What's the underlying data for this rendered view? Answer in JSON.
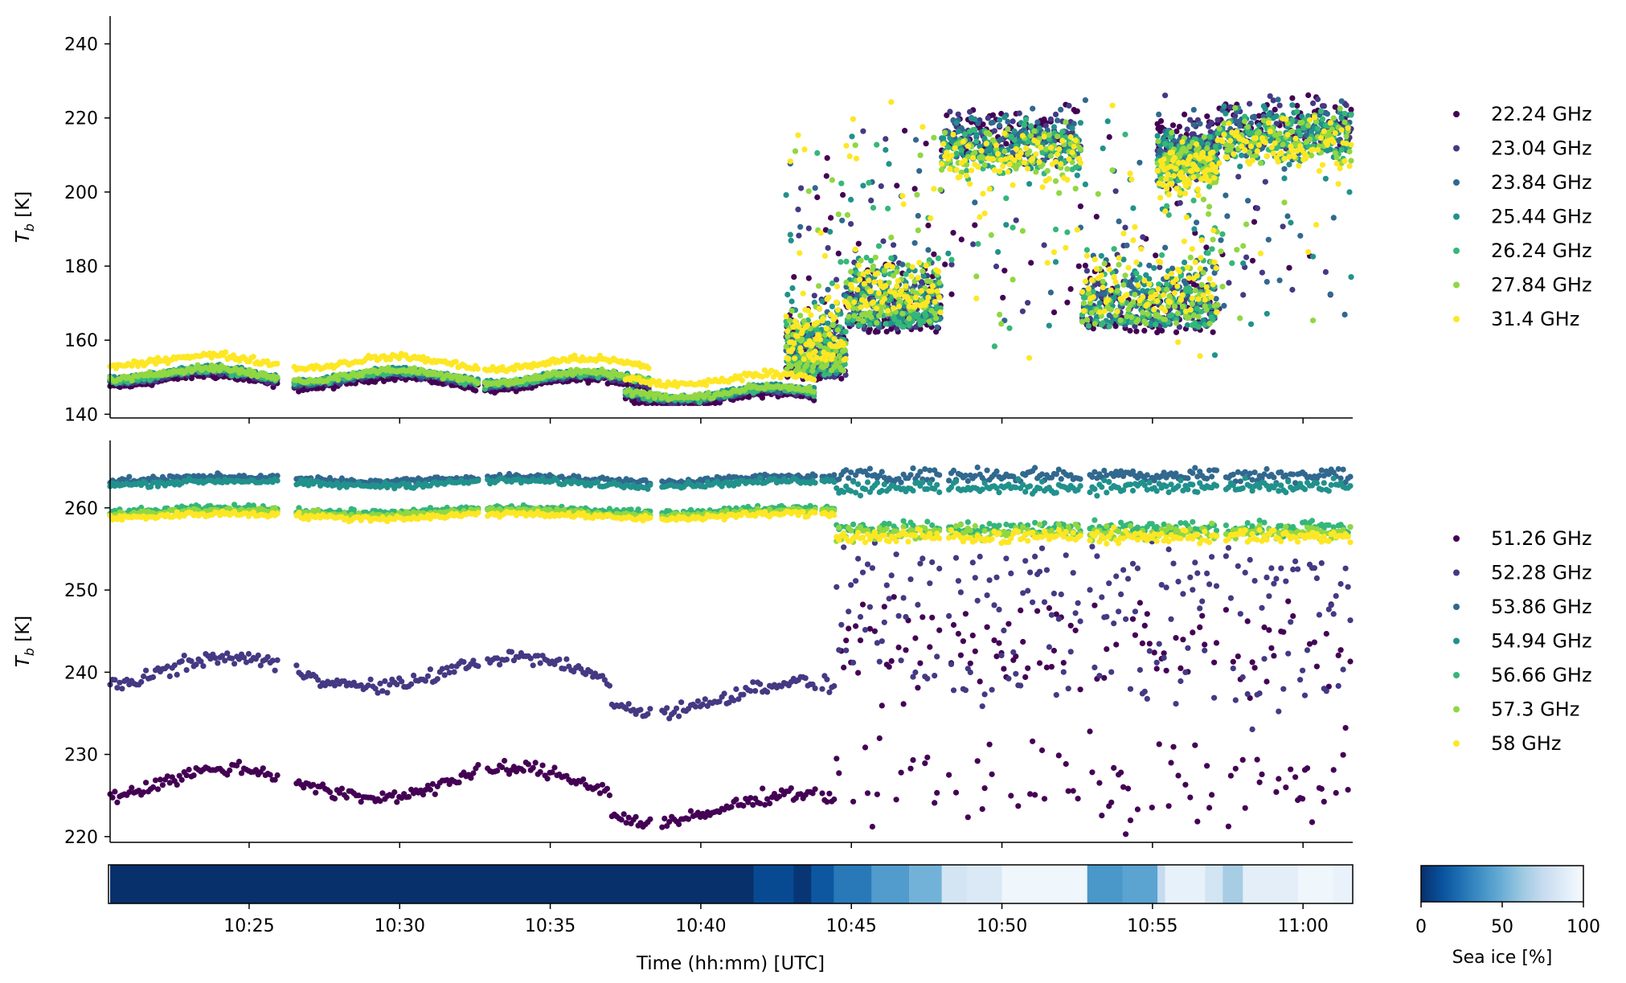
{
  "figure": {
    "ylabel_top": "T_b [K]",
    "ylabel_bottom": "T_b [K]",
    "xlabel": "Time (hh:mm) [UTC]",
    "colorbar_label": "Sea ice [%]",
    "colorbar_ticks": [
      "0",
      "50",
      "100"
    ]
  },
  "chart_data": [
    {
      "type": "scatter",
      "panel": "top",
      "ylabel": "T_b [K]",
      "x_range": [
        "10:20:23",
        "11:01:39"
      ],
      "ylim": [
        139,
        247.5
      ],
      "yticks": [
        140,
        160,
        180,
        200,
        220,
        240
      ],
      "legend_position": "right",
      "series": [
        {
          "name": "22.24 GHz",
          "color": "#440154",
          "offset": -3.0,
          "hi_offset": 4
        },
        {
          "name": "23.04 GHz",
          "color": "#443983",
          "offset": -2.0,
          "hi_offset": 3
        },
        {
          "name": "23.84 GHz",
          "color": "#31688e",
          "offset": -1.5,
          "hi_offset": 2
        },
        {
          "name": "25.44 GHz",
          "color": "#21918c",
          "offset": -1.0,
          "hi_offset": 1
        },
        {
          "name": "26.24 GHz",
          "color": "#35b779",
          "offset": -1.5,
          "hi_offset": 0
        },
        {
          "name": "27.84 GHz",
          "color": "#90d743",
          "offset": -1.0,
          "hi_offset": -1
        },
        {
          "name": "31.4 GHz",
          "color": "#fde725",
          "offset": 2.5,
          "hi_offset": -2
        }
      ],
      "segments": [
        {
          "start": "10:20:23",
          "end": "10:26:00",
          "base": 152,
          "kind": "calm"
        },
        {
          "start": "10:26:30",
          "end": "10:32:40",
          "base": 151.5,
          "kind": "calm"
        },
        {
          "start": "10:32:50",
          "end": "10:38:20",
          "base": 151,
          "kind": "calm"
        },
        {
          "start": "10:37:30",
          "end": "10:43:50",
          "base": 147,
          "kind": "calm"
        },
        {
          "start": "10:42:50",
          "end": "10:44:50",
          "base": 152,
          "kind": "mixed"
        },
        {
          "start": "10:44:50",
          "end": "10:48:00",
          "base": 165,
          "kind": "mixed"
        },
        {
          "start": "10:48:00",
          "end": "10:52:40",
          "base": 212,
          "kind": "ice"
        },
        {
          "start": "10:52:40",
          "end": "10:57:10",
          "base": 165,
          "kind": "mixed"
        },
        {
          "start": "10:55:10",
          "end": "10:57:10",
          "base": 208,
          "kind": "ice"
        },
        {
          "start": "10:57:10",
          "end": "11:01:39",
          "base": 215,
          "kind": "ice"
        }
      ]
    },
    {
      "type": "scatter",
      "panel": "bottom",
      "ylabel": "T_b [K]",
      "x_range": [
        "10:20:23",
        "11:01:39"
      ],
      "ylim": [
        219.3,
        268.2
      ],
      "yticks": [
        220,
        230,
        240,
        250,
        260
      ],
      "legend_position": "right",
      "series": [
        {
          "name": "51.26 GHz",
          "color": "#440154",
          "calm": 226.5,
          "ice": 243
        },
        {
          "name": "52.28 GHz",
          "color": "#443983",
          "calm": 240,
          "ice": 251
        },
        {
          "name": "53.86 GHz",
          "color": "#31688e",
          "calm": 263.5,
          "ice": 264
        },
        {
          "name": "54.94 GHz",
          "color": "#21918c",
          "calm": 263,
          "ice": 262.5
        },
        {
          "name": "56.66 GHz",
          "color": "#35b779",
          "calm": 259.7,
          "ice": 257.5
        },
        {
          "name": "57.3 GHz",
          "color": "#90d743",
          "calm": 259.4,
          "ice": 257
        },
        {
          "name": "58 GHz",
          "color": "#fde725",
          "calm": 259,
          "ice": 256.5
        }
      ]
    },
    {
      "type": "heatmap",
      "panel": "sea_ice",
      "xlabel": "Time (hh:mm) [UTC]",
      "x_range": [
        "10:20:23",
        "11:01:39"
      ],
      "xticks": [
        "10:25",
        "10:30",
        "10:35",
        "10:40",
        "10:45",
        "10:50",
        "10:55",
        "11:00"
      ],
      "colorbar_label": "Sea ice [%]",
      "colorbar_range": [
        0,
        100
      ],
      "blocks": [
        {
          "start": "10:20:23",
          "end": "10:41:45",
          "sea_ice": 0
        },
        {
          "start": "10:41:45",
          "end": "10:43:05",
          "sea_ice": 10
        },
        {
          "start": "10:43:05",
          "end": "10:43:40",
          "sea_ice": 2
        },
        {
          "start": "10:43:40",
          "end": "10:44:25",
          "sea_ice": 15
        },
        {
          "start": "10:44:25",
          "end": "10:45:40",
          "sea_ice": 28
        },
        {
          "start": "10:45:40",
          "end": "10:46:55",
          "sea_ice": 42
        },
        {
          "start": "10:46:55",
          "end": "10:48:00",
          "sea_ice": 52
        },
        {
          "start": "10:48:00",
          "end": "10:48:50",
          "sea_ice": 82
        },
        {
          "start": "10:48:50",
          "end": "10:50:00",
          "sea_ice": 86
        },
        {
          "start": "10:50:00",
          "end": "10:52:50",
          "sea_ice": 96
        },
        {
          "start": "10:52:50",
          "end": "10:54:00",
          "sea_ice": 40
        },
        {
          "start": "10:54:00",
          "end": "10:55:10",
          "sea_ice": 45
        },
        {
          "start": "10:55:10",
          "end": "10:55:25",
          "sea_ice": 75
        },
        {
          "start": "10:55:25",
          "end": "10:56:45",
          "sea_ice": 92
        },
        {
          "start": "10:56:45",
          "end": "10:57:20",
          "sea_ice": 82
        },
        {
          "start": "10:57:20",
          "end": "10:58:00",
          "sea_ice": 65
        },
        {
          "start": "10:58:00",
          "end": "10:59:50",
          "sea_ice": 90
        },
        {
          "start": "10:59:50",
          "end": "11:01:00",
          "sea_ice": 96
        },
        {
          "start": "11:01:00",
          "end": "11:01:39",
          "sea_ice": 93
        }
      ]
    }
  ]
}
